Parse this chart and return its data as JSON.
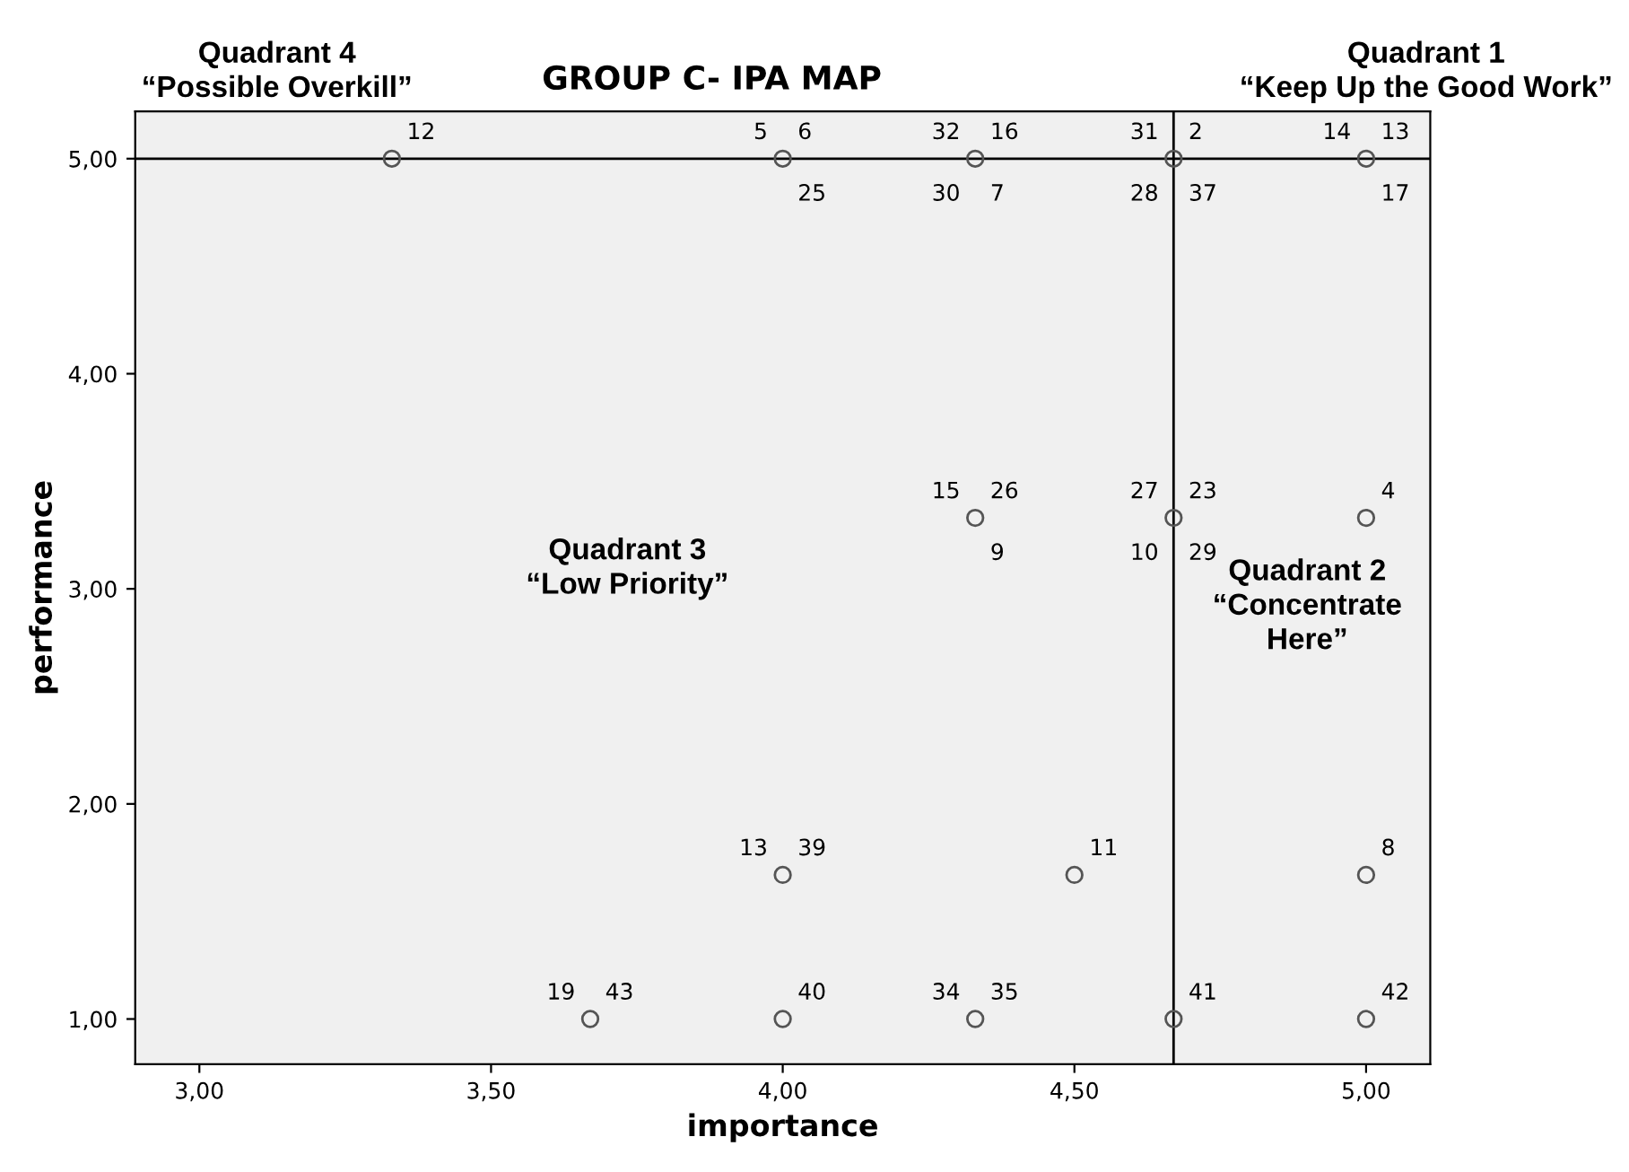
{
  "chart_data": {
    "type": "scatter",
    "title": "GROUP C- IPA MAP",
    "xlabel": "importance",
    "ylabel": "performance",
    "x": [
      3.33,
      4.0,
      4.33,
      4.67,
      5.0,
      4.33,
      4.67,
      5.0,
      4.0,
      4.5,
      5.0,
      3.67,
      4.0,
      4.33,
      4.67,
      5.0
    ],
    "series": [
      {
        "color": "#555555",
        "values": [
          5.0,
          5.0,
          5.0,
          5.0,
          5.0,
          3.33,
          3.33,
          3.33,
          1.67,
          1.67,
          1.67,
          1.0,
          1.0,
          1.0,
          1.0,
          1.0
        ]
      }
    ],
    "marker": "circle",
    "grid": false,
    "legend": false,
    "xlim": [
      2.89,
      5.11
    ],
    "ylim": [
      0.79,
      5.22
    ],
    "xticks": [
      {
        "value": 3,
        "label": "3,00"
      },
      {
        "value": 3.5,
        "label": "3,50"
      },
      {
        "value": 4,
        "label": "4,00"
      },
      {
        "value": 4.5,
        "label": "4,50"
      },
      {
        "value": 5,
        "label": "5,00"
      }
    ],
    "yticks": [
      {
        "value": 1,
        "label": "1,00"
      },
      {
        "value": 2,
        "label": "2,00"
      },
      {
        "value": 3,
        "label": "3,00"
      },
      {
        "value": 4,
        "label": "4,00"
      },
      {
        "value": 5,
        "label": "5,00"
      }
    ],
    "ref_lines": [
      {
        "axis": "x",
        "value": 4.67,
        "color": "#000000"
      },
      {
        "axis": "y",
        "value": 5.0,
        "color": "#000000"
      }
    ],
    "annotations": [
      "Quadrant 4\n“Possible Overkill”",
      "Quadrant 1\n“Keep Up the Good Work”",
      "Quadrant 3\n“Low Priority”",
      "Quadrant 2\n“Concentrate\nHere”",
      {
        "text": "12",
        "x": 3.33,
        "y": 5.0
      },
      {
        "text": "5",
        "x": 4.0,
        "y": 5.0
      },
      {
        "text": "6",
        "x": 4.0,
        "y": 5.0
      },
      {
        "text": "25",
        "x": 4.0,
        "y": 5.0
      },
      {
        "text": "32",
        "x": 4.33,
        "y": 5.0
      },
      {
        "text": "16",
        "x": 4.33,
        "y": 5.0
      },
      {
        "text": "30",
        "x": 4.33,
        "y": 5.0
      },
      {
        "text": "7",
        "x": 4.33,
        "y": 5.0
      },
      {
        "text": "31",
        "x": 4.67,
        "y": 5.0
      },
      {
        "text": "2",
        "x": 4.67,
        "y": 5.0
      },
      {
        "text": "28",
        "x": 4.67,
        "y": 5.0
      },
      {
        "text": "37",
        "x": 4.67,
        "y": 5.0
      },
      {
        "text": "14",
        "x": 5.0,
        "y": 5.0
      },
      {
        "text": "13",
        "x": 5.0,
        "y": 5.0
      },
      {
        "text": "17",
        "x": 5.0,
        "y": 5.0
      },
      {
        "text": "15",
        "x": 4.33,
        "y": 3.33
      },
      {
        "text": "26",
        "x": 4.33,
        "y": 3.33
      },
      {
        "text": "9",
        "x": 4.33,
        "y": 3.33
      },
      {
        "text": "27",
        "x": 4.67,
        "y": 3.33
      },
      {
        "text": "23",
        "x": 4.67,
        "y": 3.33
      },
      {
        "text": "10",
        "x": 4.67,
        "y": 3.33
      },
      {
        "text": "29",
        "x": 4.67,
        "y": 3.33
      },
      {
        "text": "4",
        "x": 5.0,
        "y": 3.33
      },
      {
        "text": "13",
        "x": 4.0,
        "y": 1.67
      },
      {
        "text": "39",
        "x": 4.0,
        "y": 1.67
      },
      {
        "text": "11",
        "x": 4.5,
        "y": 1.67
      },
      {
        "text": "8",
        "x": 5.0,
        "y": 1.67
      },
      {
        "text": "19",
        "x": 3.67,
        "y": 1.0
      },
      {
        "text": "43",
        "x": 3.67,
        "y": 1.0
      },
      {
        "text": "40",
        "x": 4.0,
        "y": 1.0
      },
      {
        "text": "34",
        "x": 4.33,
        "y": 1.0
      },
      {
        "text": "35",
        "x": 4.33,
        "y": 1.0
      },
      {
        "text": "41",
        "x": 4.67,
        "y": 1.0
      },
      {
        "text": "42",
        "x": 5.0,
        "y": 1.0
      }
    ]
  }
}
